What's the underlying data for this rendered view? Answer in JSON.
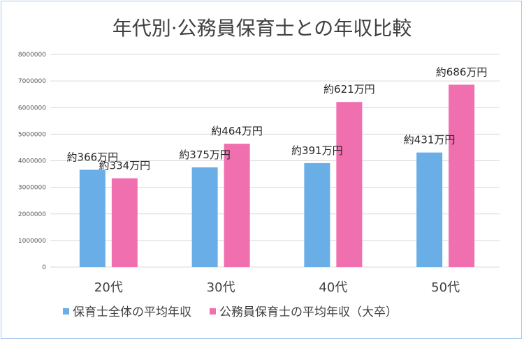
{
  "chart_data": {
    "type": "bar",
    "title": "年代別·公務員保育士との年収比較",
    "categories": [
      "20代",
      "30代",
      "40代",
      "50代"
    ],
    "series": [
      {
        "name": "保育士全体の平均年収",
        "color": "#6aaee8",
        "values": [
          3660000,
          3750000,
          3910000,
          4310000
        ],
        "labels": [
          "約366万円",
          "約375万円",
          "約391万円",
          "約431万円"
        ]
      },
      {
        "name": "公務員保育士の平均年収（大卒）",
        "color": "#f06fae",
        "values": [
          3340000,
          4640000,
          6210000,
          6860000
        ],
        "labels": [
          "約334万円",
          "約464万円",
          "約621万円",
          "約686万円"
        ]
      }
    ],
    "ylim": [
      0,
      8000000
    ],
    "yticks": [
      "0",
      "1000000",
      "2000000",
      "3000000",
      "4000000",
      "5000000",
      "6000000",
      "7000000",
      "8000000"
    ],
    "grid": true,
    "legend": "bottom",
    "xlabel": "",
    "ylabel": ""
  }
}
